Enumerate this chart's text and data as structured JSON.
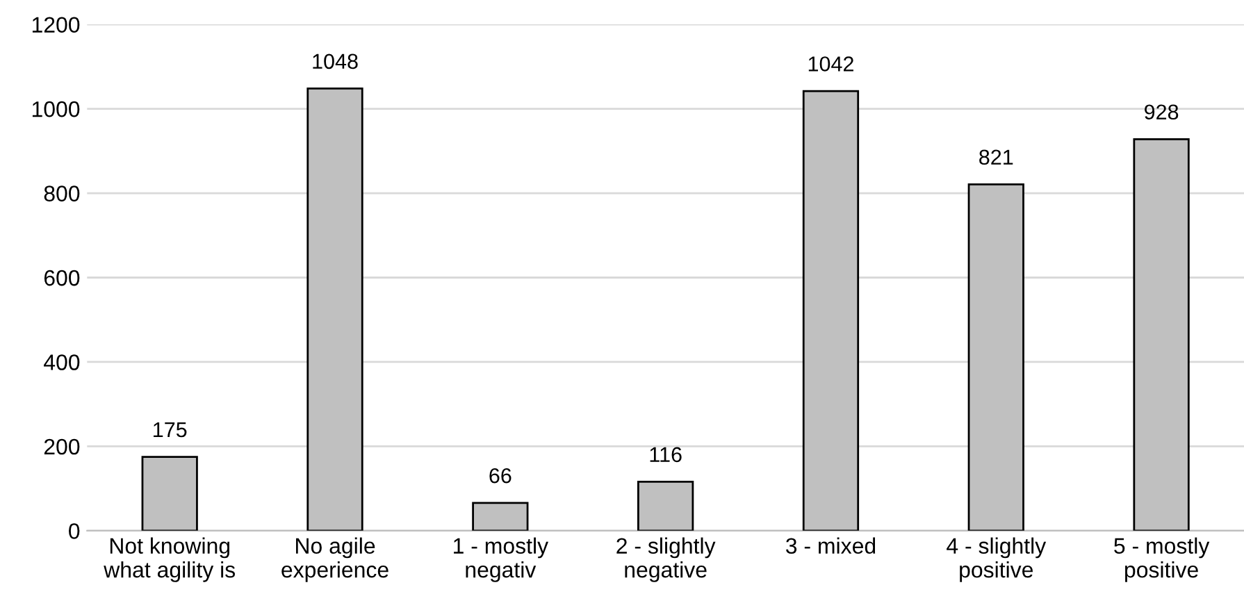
{
  "chart_data": {
    "type": "bar",
    "categories": [
      "Not knowing\nwhat agility is",
      "No agile\nexperience",
      "1 - mostly\nnegativ",
      "2 - slightly\nnegative",
      "3 - mixed",
      "4 - slightly\npositive",
      "5 - mostly\npositive"
    ],
    "values": [
      175,
      1048,
      66,
      116,
      1042,
      821,
      928
    ],
    "color": "#c0c0c0",
    "ylim": [
      0,
      1200
    ],
    "yticks": [
      0,
      200,
      400,
      600,
      800,
      1000,
      1200
    ],
    "grid": "y",
    "data_labels": true
  }
}
